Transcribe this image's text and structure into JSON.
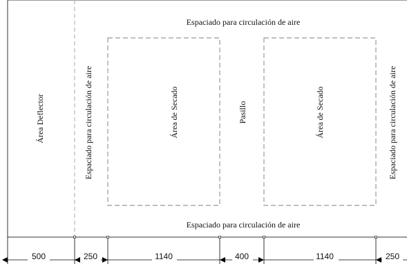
{
  "labels": {
    "top_spacing": "Espaciado para circulación de aire",
    "bottom_spacing": "Espaciado para circulación de aire",
    "deflector": "Área Deflector",
    "left_spacing": "Espaciado para circulación de aire",
    "drying_left": "Área de Secado",
    "aisle": "Pasillo",
    "drying_right": "Área de Secado",
    "right_spacing": "Espaciado para circulación de aire"
  },
  "dimensions": [
    "500",
    "250",
    "1140",
    "400",
    "1140",
    "250"
  ]
}
